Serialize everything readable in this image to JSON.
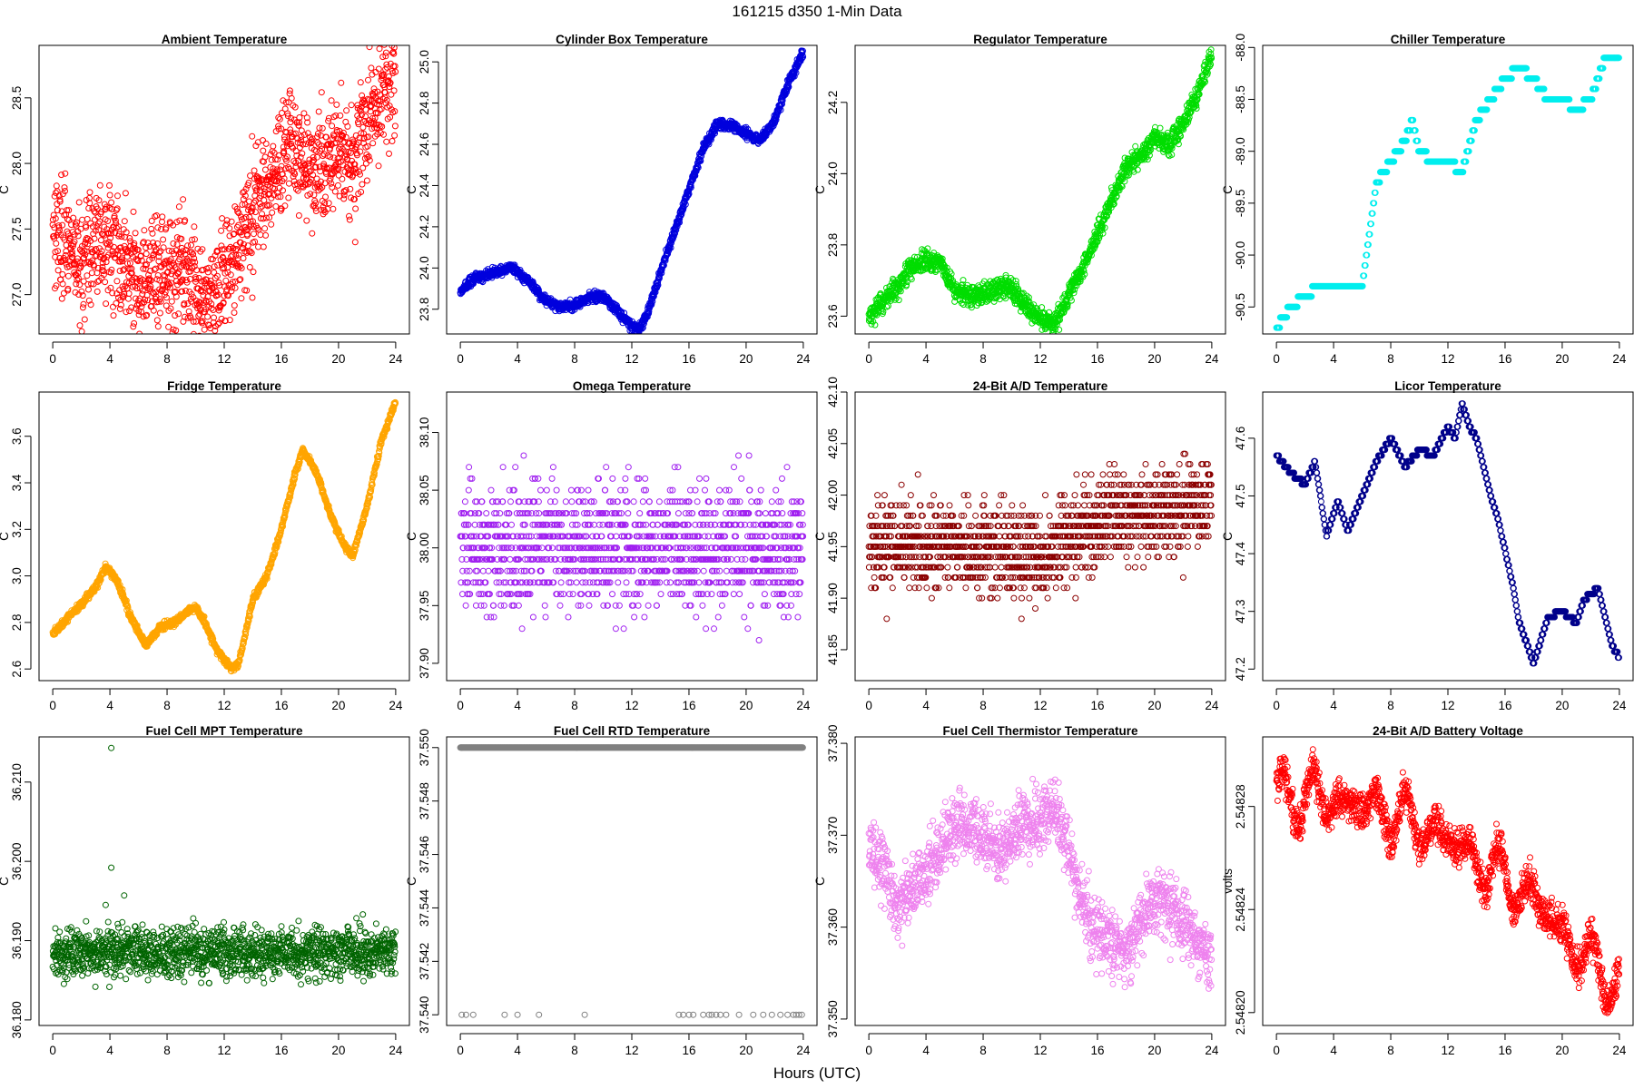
{
  "figure": {
    "title": "161215    d350    1-Min Data",
    "xlabel": "Hours (UTC)"
  },
  "chart_data": [
    {
      "type": "scatter",
      "title": "Ambient Temperature",
      "ylabel": "C",
      "color": "#ff0000",
      "xlim": [
        -0.96,
        24.96
      ],
      "ylim": [
        26.7,
        28.9
      ],
      "xticks": [
        0,
        4,
        8,
        12,
        16,
        20,
        24
      ],
      "yticks": [
        27.0,
        27.5,
        28.0,
        28.5
      ],
      "ytick_labels": [
        "27.0",
        "27.5",
        "28.0",
        "28.5"
      ],
      "x": [
        0,
        1,
        2,
        3,
        4,
        5,
        6,
        7,
        8,
        9,
        10,
        11,
        12,
        13,
        14,
        15,
        16,
        17,
        18,
        19,
        20,
        21,
        22,
        23,
        24
      ],
      "y": [
        27.6,
        27.35,
        27.2,
        27.45,
        27.35,
        27.25,
        27.1,
        27.15,
        27.1,
        27.25,
        27.1,
        26.95,
        27.1,
        27.4,
        27.6,
        27.85,
        28.05,
        28.15,
        27.95,
        28.0,
        28.1,
        27.95,
        28.35,
        28.5,
        28.6
      ],
      "noise": 0.22,
      "n": 1440
    },
    {
      "type": "scatter",
      "title": "Cylinder Box Temperature",
      "ylabel": "C",
      "color": "#0000dd",
      "xlim": [
        -0.96,
        24.96
      ],
      "ylim": [
        23.68,
        25.08
      ],
      "xticks": [
        0,
        4,
        8,
        12,
        16,
        20,
        24
      ],
      "yticks": [
        23.8,
        24.0,
        24.2,
        24.4,
        24.6,
        24.8,
        25.0
      ],
      "ytick_labels": [
        "23.8",
        "24.0",
        "24.2",
        "24.4",
        "24.6",
        "24.8",
        "25.0"
      ],
      "x": [
        0,
        1,
        2,
        3,
        3.5,
        4,
        5,
        6,
        7,
        8,
        9,
        10,
        11,
        12,
        12.5,
        13,
        14,
        15,
        16,
        17,
        18,
        19,
        20,
        21,
        22,
        23,
        24
      ],
      "y": [
        23.89,
        23.95,
        23.97,
        23.99,
        24.01,
        23.98,
        23.92,
        23.84,
        23.81,
        23.82,
        23.86,
        23.86,
        23.79,
        23.72,
        23.7,
        23.76,
        23.98,
        24.18,
        24.38,
        24.58,
        24.7,
        24.69,
        24.65,
        24.62,
        24.72,
        24.9,
        25.05
      ],
      "noise": 0.012,
      "n": 1440
    },
    {
      "type": "scatter",
      "title": "Regulator Temperature",
      "ylabel": "C",
      "color": "#00dd00",
      "xlim": [
        -0.96,
        24.96
      ],
      "ylim": [
        23.55,
        24.36
      ],
      "xticks": [
        0,
        4,
        8,
        12,
        16,
        20,
        24
      ],
      "yticks": [
        23.6,
        23.8,
        24.0,
        24.2
      ],
      "ytick_labels": [
        "23.6",
        "23.8",
        "24.0",
        "24.2"
      ],
      "x": [
        0,
        1,
        2,
        3,
        4,
        5,
        6,
        7,
        8,
        9,
        10,
        11,
        12,
        13,
        14,
        15,
        16,
        17,
        18,
        19,
        20,
        21,
        22,
        23,
        24
      ],
      "y": [
        23.6,
        23.64,
        23.68,
        23.74,
        23.76,
        23.75,
        23.67,
        23.66,
        23.66,
        23.68,
        23.68,
        23.63,
        23.59,
        23.58,
        23.66,
        23.74,
        23.83,
        23.93,
        24.02,
        24.05,
        24.1,
        24.08,
        24.14,
        24.22,
        24.34
      ],
      "noise": 0.015,
      "n": 1440
    },
    {
      "type": "scatter",
      "title": "Chiller Temperature",
      "ylabel": "C",
      "color": "#00eeee",
      "xlim": [
        -0.96,
        24.96
      ],
      "ylim": [
        -90.76,
        -87.98
      ],
      "xticks": [
        0,
        4,
        8,
        12,
        16,
        20,
        24
      ],
      "yticks": [
        -88.0,
        -88.5,
        -89.0,
        -89.5,
        -90.0,
        -90.5
      ],
      "ytick_labels": [
        "-88.0",
        "-88.5",
        "-89.0",
        "-89.5",
        "-90.0",
        "-90.5"
      ],
      "x": [
        0,
        0.5,
        1,
        2,
        3,
        4,
        5,
        6,
        7,
        8,
        9,
        9.5,
        10,
        11,
        12,
        13,
        14,
        15,
        16,
        17,
        18,
        19,
        20,
        21,
        22,
        23,
        24
      ],
      "y": [
        -90.7,
        -90.6,
        -90.5,
        -90.4,
        -90.3,
        -90.3,
        -90.3,
        -90.3,
        -89.3,
        -89.1,
        -88.9,
        -88.7,
        -89.0,
        -89.1,
        -89.1,
        -89.2,
        -88.7,
        -88.5,
        -88.3,
        -88.2,
        -88.3,
        -88.5,
        -88.5,
        -88.6,
        -88.5,
        -88.1,
        -88.1
      ],
      "noise": 0.0,
      "quant": 0.1,
      "n": 1440
    },
    {
      "type": "scatter",
      "title": "Fridge Temperature",
      "ylabel": "C",
      "color": "#ffa500",
      "xlim": [
        -0.96,
        24.96
      ],
      "ylim": [
        2.55,
        3.79
      ],
      "xticks": [
        0,
        4,
        8,
        12,
        16,
        20,
        24
      ],
      "yticks": [
        2.6,
        2.8,
        3.0,
        3.2,
        3.4,
        3.6
      ],
      "ytick_labels": [
        "2.6",
        "2.8",
        "3.0",
        "3.2",
        "3.4",
        "3.6"
      ],
      "x": [
        0,
        1,
        2,
        3,
        3.7,
        4.5,
        5.5,
        6.5,
        7.5,
        8.5,
        9.5,
        10,
        10.5,
        11.5,
        12.5,
        13,
        14,
        15,
        16,
        17,
        17.5,
        18.5,
        19.5,
        20.5,
        21,
        22,
        23,
        24
      ],
      "y": [
        2.75,
        2.82,
        2.88,
        2.95,
        3.04,
        2.98,
        2.82,
        2.7,
        2.78,
        2.8,
        2.85,
        2.86,
        2.82,
        2.68,
        2.6,
        2.62,
        2.9,
        3.0,
        3.2,
        3.45,
        3.54,
        3.44,
        3.25,
        3.12,
        3.09,
        3.3,
        3.58,
        3.75
      ],
      "noise": 0.008,
      "n": 1440
    },
    {
      "type": "scatter",
      "title": "Omega Temperature",
      "ylabel": "C",
      "color": "#a020f0",
      "xlim": [
        -0.96,
        24.96
      ],
      "ylim": [
        37.885,
        38.135
      ],
      "xticks": [
        0,
        4,
        8,
        12,
        16,
        20,
        24
      ],
      "yticks": [
        37.9,
        37.95,
        38.0,
        38.05,
        38.1
      ],
      "ytick_labels": [
        "37.90",
        "37.95",
        "38.00",
        "38.05",
        "38.10"
      ],
      "x": [
        0,
        24
      ],
      "y": [
        38.0,
        38.0
      ],
      "noise": 0.028,
      "quant": 0.01,
      "n": 1440
    },
    {
      "type": "scatter",
      "title": "24-Bit A/D Temperature",
      "ylabel": "C",
      "color": "#8b0000",
      "xlim": [
        -0.96,
        24.96
      ],
      "ylim": [
        41.82,
        42.1
      ],
      "xticks": [
        0,
        4,
        8,
        12,
        16,
        20,
        24
      ],
      "yticks": [
        41.85,
        41.9,
        41.95,
        42.0,
        42.05,
        42.1
      ],
      "ytick_labels": [
        "41.85",
        "41.90",
        "41.95",
        "42.00",
        "42.05",
        "42.10"
      ],
      "x": [
        0,
        6,
        12,
        14,
        18,
        24
      ],
      "y": [
        41.95,
        41.95,
        41.94,
        41.96,
        41.98,
        41.99
      ],
      "noise": 0.022,
      "quant": 0.01,
      "n": 1440
    },
    {
      "type": "scatter",
      "title": "Licor Temperature",
      "ylabel": "C",
      "color": "#00008b",
      "xlim": [
        -0.96,
        24.96
      ],
      "ylim": [
        47.18,
        47.68
      ],
      "xticks": [
        0,
        4,
        8,
        12,
        16,
        20,
        24
      ],
      "yticks": [
        47.2,
        47.3,
        47.4,
        47.5,
        47.6
      ],
      "ytick_labels": [
        "47.2",
        "47.3",
        "47.4",
        "47.5",
        "47.6"
      ],
      "x": [
        0,
        1,
        2,
        2.7,
        3.5,
        4.3,
        5,
        6,
        7,
        8,
        9,
        10,
        11,
        12,
        12.5,
        13,
        13.5,
        14,
        15,
        15.5,
        16.5,
        17,
        18,
        19,
        20,
        21,
        21.5,
        22,
        22.5,
        23,
        23.5,
        24
      ],
      "y": [
        47.57,
        47.54,
        47.52,
        47.56,
        47.43,
        47.49,
        47.44,
        47.5,
        47.56,
        47.6,
        47.55,
        47.58,
        47.57,
        47.62,
        47.6,
        47.66,
        47.62,
        47.6,
        47.5,
        47.46,
        47.35,
        47.28,
        47.21,
        47.29,
        47.3,
        47.28,
        47.32,
        47.33,
        47.34,
        47.29,
        47.24,
        47.22
      ],
      "noise": 0.0,
      "quant": 0.01,
      "n": 1440
    },
    {
      "type": "scatter",
      "title": "Fuel Cell MPT Temperature",
      "ylabel": "C",
      "color": "#006400",
      "xlim": [
        -0.96,
        24.96
      ],
      "ylim": [
        36.1793,
        36.2157
      ],
      "xticks": [
        0,
        4,
        8,
        12,
        16,
        20,
        24
      ],
      "yticks": [
        36.18,
        36.19,
        36.2,
        36.21
      ],
      "ytick_labels": [
        "36.180",
        "36.190",
        "36.200",
        "36.210"
      ],
      "x": [
        0,
        24
      ],
      "y": [
        36.1885,
        36.1885
      ],
      "noise": 0.0016,
      "n": 1440,
      "outliers": [
        [
          4.1,
          36.2143
        ],
        [
          4.1,
          36.1992
        ],
        [
          5.0,
          36.1957
        ],
        [
          3.7,
          36.1945
        ]
      ]
    },
    {
      "type": "scatter",
      "title": "Fuel Cell RTD Temperature",
      "ylabel": "C",
      "color": "#808080",
      "xlim": [
        -0.96,
        24.96
      ],
      "ylim": [
        37.5396,
        37.5504
      ],
      "xticks": [
        0,
        4,
        8,
        12,
        16,
        20,
        24
      ],
      "yticks": [
        37.54,
        37.542,
        37.544,
        37.546,
        37.548,
        37.55
      ],
      "ytick_labels": [
        "37.540",
        "37.542",
        "37.544",
        "37.546",
        "37.548",
        "37.550"
      ],
      "x": [
        0,
        24
      ],
      "y": [
        37.55,
        37.55
      ],
      "noise": 0.0,
      "n": 1440,
      "low_value": 37.54,
      "low_x": [
        0.1,
        0.4,
        0.9,
        3.1,
        4.0,
        5.5,
        8.7,
        15.3,
        15.6,
        16.0,
        16.3,
        17.0,
        17.4,
        17.6,
        17.9,
        18.2,
        18.6,
        19.5,
        20.5,
        21.2,
        21.8,
        22.4,
        22.9,
        23.3,
        23.5,
        23.7,
        23.9
      ]
    },
    {
      "type": "scatter",
      "title": "Fuel Cell Thermistor Temperature",
      "ylabel": "C",
      "color": "#ee82ee",
      "xlim": [
        -0.96,
        24.96
      ],
      "ylim": [
        37.3493,
        37.3807
      ],
      "xticks": [
        0,
        4,
        8,
        12,
        16,
        20,
        24
      ],
      "yticks": [
        37.35,
        37.36,
        37.37,
        37.38
      ],
      "ytick_labels": [
        "37.350",
        "37.360",
        "37.370",
        "37.380"
      ],
      "x": [
        0,
        1,
        2,
        3,
        4,
        5,
        6,
        7,
        8,
        9,
        10,
        11,
        12,
        13,
        14,
        15,
        16,
        17,
        18,
        19,
        20,
        21,
        22,
        23,
        24
      ],
      "y": [
        37.368,
        37.367,
        37.362,
        37.364,
        37.366,
        37.368,
        37.371,
        37.371,
        37.37,
        37.368,
        37.37,
        37.371,
        37.372,
        37.373,
        37.368,
        37.362,
        37.359,
        37.358,
        37.357,
        37.361,
        37.363,
        37.362,
        37.361,
        37.358,
        37.356
      ],
      "noise": 0.0018,
      "n": 1440
    },
    {
      "type": "scatter",
      "title": "24-Bit A/D Battery Voltage",
      "ylabel": "volts",
      "color": "#ff0000",
      "xlim": [
        -0.96,
        24.96
      ],
      "ylim": [
        2.548195,
        2.548307
      ],
      "xticks": [
        0,
        4,
        8,
        12,
        16,
        20,
        24
      ],
      "yticks": [
        2.5482,
        2.54824,
        2.54828
      ],
      "ytick_labels": [
        "2.54820",
        "2.54824",
        "2.54828"
      ],
      "x": [
        0,
        3,
        6,
        9,
        12,
        15,
        18,
        21,
        24
      ],
      "y": [
        2.548285,
        2.548283,
        2.54828,
        2.548275,
        2.548268,
        2.548255,
        2.548245,
        2.548225,
        2.54821
      ],
      "noise": 3.5e-06,
      "wave": 1.2e-05,
      "n": 1440
    }
  ]
}
